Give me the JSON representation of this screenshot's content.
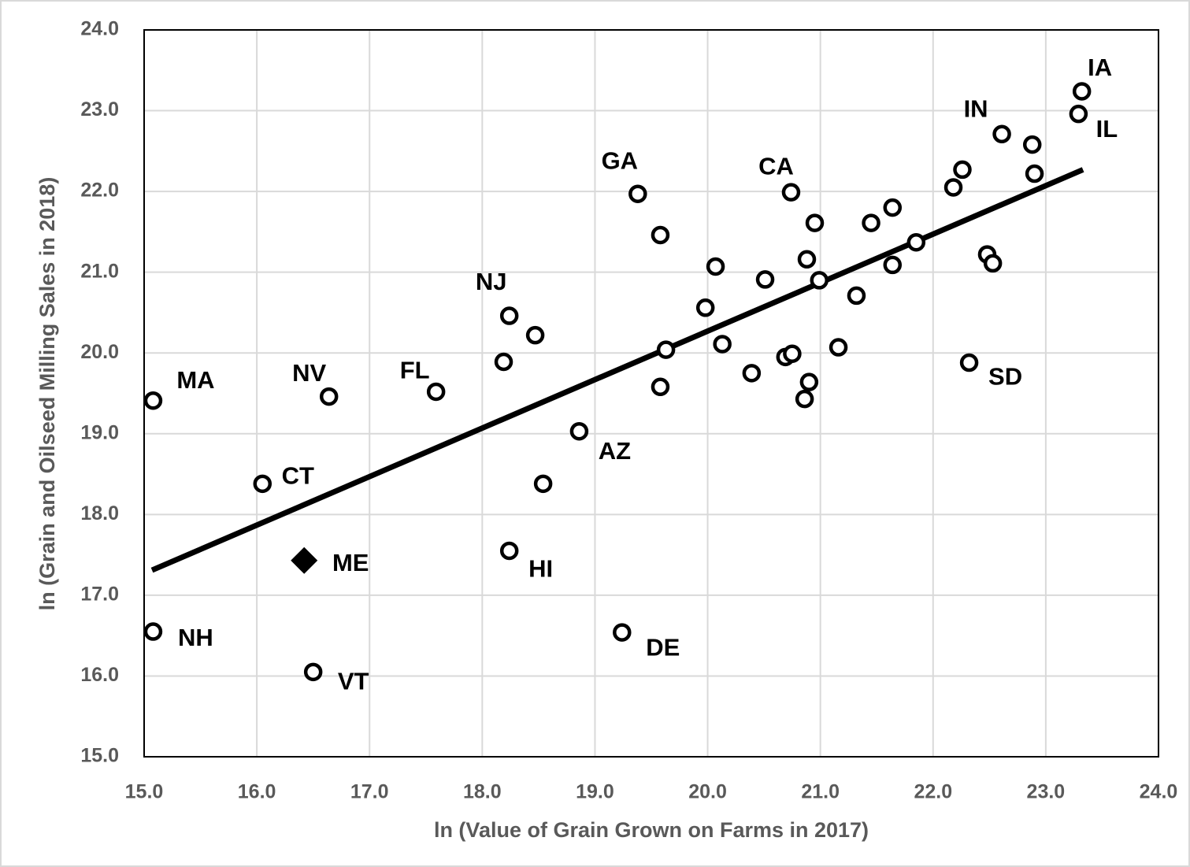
{
  "chart_data": {
    "type": "scatter",
    "x_label": "ln (Value of Grain Grown on Farms in 2017)",
    "y_label": "ln (Grain and Oilseed Milling Sales in 2018)",
    "xlim": [
      15,
      24
    ],
    "ylim": [
      15,
      24
    ],
    "xticks": [
      {
        "value": 15,
        "label": "15.0"
      },
      {
        "value": 16,
        "label": "16.0"
      },
      {
        "value": 17,
        "label": "17.0"
      },
      {
        "value": 18,
        "label": "18.0"
      },
      {
        "value": 19,
        "label": "19.0"
      },
      {
        "value": 20,
        "label": "20.0"
      },
      {
        "value": 21,
        "label": "21.0"
      },
      {
        "value": 22,
        "label": "22.0"
      },
      {
        "value": 23,
        "label": "23.0"
      },
      {
        "value": 24,
        "label": "24.0"
      }
    ],
    "yticks": [
      {
        "value": 15,
        "label": "15.0"
      },
      {
        "value": 16,
        "label": "16.0"
      },
      {
        "value": 17,
        "label": "17.0"
      },
      {
        "value": 18,
        "label": "18.0"
      },
      {
        "value": 19,
        "label": "19.0"
      },
      {
        "value": 20,
        "label": "20.0"
      },
      {
        "value": 21,
        "label": "21.0"
      },
      {
        "value": 22,
        "label": "22.0"
      },
      {
        "value": 23,
        "label": "23.0"
      },
      {
        "value": 24,
        "label": "24.0"
      }
    ],
    "grid": true,
    "series": [
      {
        "marker": "circle",
        "color": "#000000",
        "x": [
          15.08,
          16.64,
          17.59,
          16.05,
          15.08,
          16.5,
          18.24,
          18.86,
          18.24,
          19.24,
          19.38,
          20.74,
          22.32,
          22.61,
          23.32,
          23.29,
          18.47,
          18.19,
          18.54,
          19.58,
          19.63,
          19.58,
          20.07,
          19.98,
          20.13,
          20.39,
          20.51,
          20.95,
          20.88,
          20.99,
          21.32,
          21.16,
          20.69,
          20.75,
          20.9,
          20.86,
          21.45,
          21.64,
          21.64,
          21.85,
          22.18,
          22.26,
          22.48,
          22.53,
          22.88,
          22.9
        ],
        "values": [
          19.41,
          19.46,
          19.52,
          18.38,
          16.55,
          16.05,
          20.46,
          19.03,
          17.55,
          16.54,
          21.97,
          21.99,
          19.88,
          22.71,
          23.24,
          22.96,
          20.22,
          19.89,
          18.38,
          21.46,
          20.04,
          19.58,
          21.07,
          20.56,
          20.11,
          19.75,
          20.91,
          21.61,
          21.16,
          20.9,
          20.71,
          20.07,
          19.95,
          19.99,
          19.64,
          19.43,
          21.61,
          21.8,
          21.09,
          21.37,
          22.05,
          22.27,
          21.22,
          21.11,
          22.58,
          22.22
        ],
        "labels": [
          "MA",
          "NV",
          "FL",
          "CT",
          "NH",
          "VT",
          "NJ",
          "AZ",
          "HI",
          "DE",
          "GA",
          "CA",
          "SD",
          "IN",
          "IA",
          "IL",
          null,
          null,
          null,
          null,
          null,
          null,
          null,
          null,
          null,
          null,
          null,
          null,
          null,
          null,
          null,
          null,
          null,
          null,
          null,
          null,
          null,
          null,
          null,
          null,
          null,
          null,
          null,
          null,
          null,
          null
        ]
      },
      {
        "marker": "diamond",
        "color": "#000000",
        "x": [
          16.42
        ],
        "values": [
          17.43
        ],
        "labels": [
          "ME"
        ]
      }
    ],
    "trendline": {
      "color": "#000000",
      "x": [
        15.07,
        23.33
      ],
      "values": [
        17.31,
        22.27
      ]
    }
  }
}
